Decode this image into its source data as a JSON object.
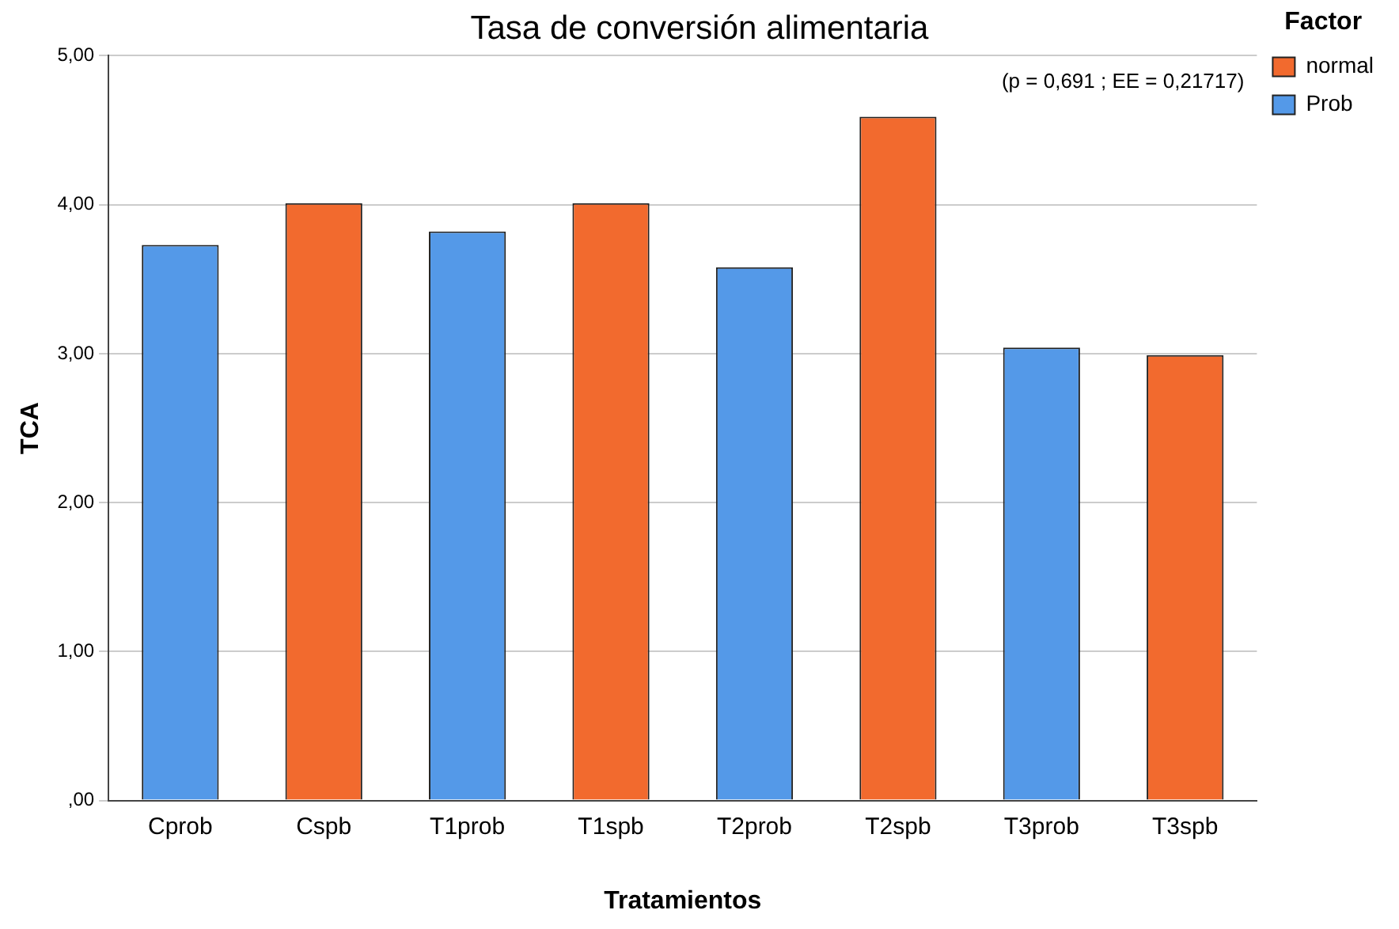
{
  "chart_data": {
    "type": "bar",
    "title": "Tasa de conversión alimentaria",
    "xlabel": "Tratamientos",
    "ylabel": "TCA",
    "legend_title": "Factor",
    "categories": [
      "Cprob",
      "Cspb",
      "T1prob",
      "T1spb",
      "T2prob",
      "T2spb",
      "T3prob",
      "T3spb"
    ],
    "series": [
      {
        "name": "normal",
        "color": "#f26a2e",
        "values": [
          null,
          4.01,
          null,
          4.01,
          null,
          4.59,
          null,
          2.99
        ]
      },
      {
        "name": "Prob",
        "color": "#5499e8",
        "values": [
          3.73,
          null,
          3.82,
          null,
          3.58,
          null,
          3.04,
          null
        ]
      }
    ],
    "ylim": [
      0,
      5
    ],
    "yticks": [
      {
        "value": 0,
        "label": ",00"
      },
      {
        "value": 1,
        "label": "1,00"
      },
      {
        "value": 2,
        "label": "2,00"
      },
      {
        "value": 3,
        "label": "3,00"
      },
      {
        "value": 4,
        "label": "4,00"
      },
      {
        "value": 5,
        "label": "5,00"
      }
    ],
    "grid": "y",
    "legend": "top right",
    "annotations": [
      "(p = 0,691 ; EE = 0,21717)"
    ]
  }
}
